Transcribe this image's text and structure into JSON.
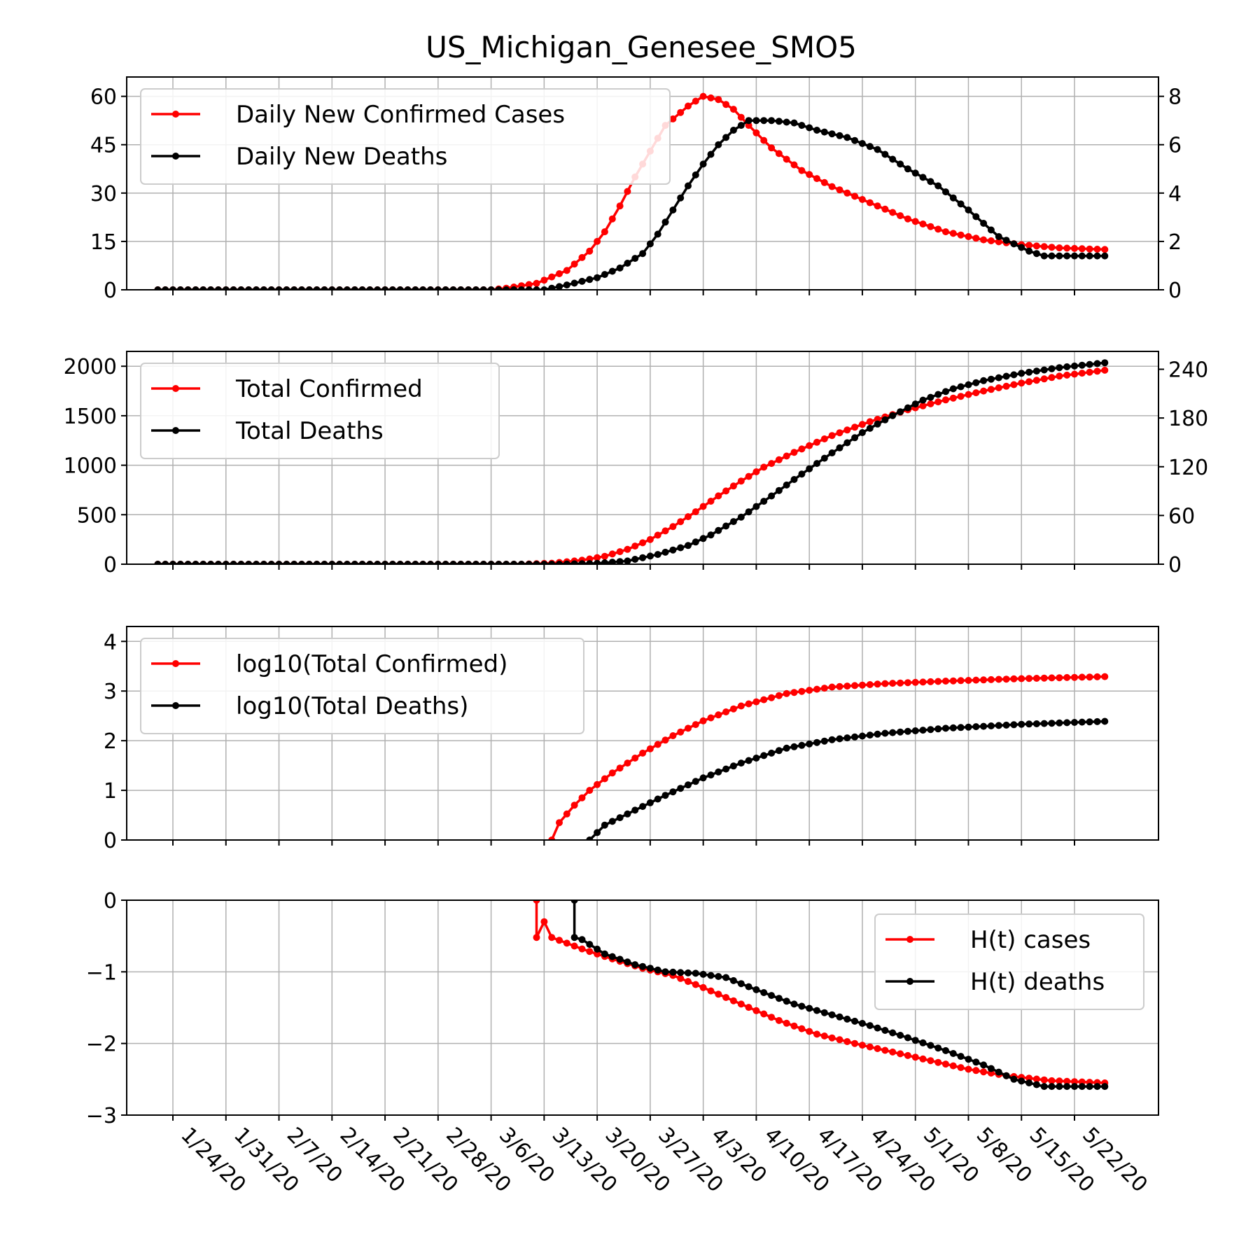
{
  "title": "US_Michigan_Genesee_SMO5",
  "x_tick_labels": [
    "1/24/20",
    "1/31/20",
    "2/7/20",
    "2/14/20",
    "2/21/20",
    "2/28/20",
    "3/6/20",
    "3/13/20",
    "3/20/20",
    "3/27/20",
    "4/3/20",
    "4/10/20",
    "4/17/20",
    "4/24/20",
    "5/1/20",
    "5/8/20",
    "5/15/20",
    "5/22/20"
  ],
  "colors": {
    "cases": "#ff0000",
    "deaths": "#000000",
    "grid": "#b0b0b0"
  },
  "chart_data": [
    {
      "type": "line",
      "panel": "daily",
      "x_start": "2020-01-22",
      "x_end": "2020-05-26",
      "x_ticks": [
        "1/24/20",
        "1/31/20",
        "2/7/20",
        "2/14/20",
        "2/21/20",
        "2/28/20",
        "3/6/20",
        "3/13/20",
        "3/20/20",
        "3/27/20",
        "4/3/20",
        "4/10/20",
        "4/17/20",
        "4/24/20",
        "5/1/20",
        "5/8/20",
        "5/15/20",
        "5/22/20"
      ],
      "ylim_left": [
        0,
        66
      ],
      "yticks_left": [
        "0",
        "15",
        "30",
        "45",
        "60"
      ],
      "ylim_right": [
        0,
        8.8
      ],
      "yticks_right": [
        "0",
        "2",
        "4",
        "6",
        "8"
      ],
      "grid": true,
      "legend_position": "upper-left",
      "series": [
        {
          "name": "Daily New Confirmed Cases",
          "axis": "left",
          "color": "#ff0000",
          "points": [
            [
              "2020-01-22",
              0
            ],
            [
              "2020-03-06",
              0
            ],
            [
              "2020-03-08",
              0.5
            ],
            [
              "2020-03-12",
              2
            ],
            [
              "2020-03-16",
              6
            ],
            [
              "2020-03-19",
              12
            ],
            [
              "2020-03-21",
              18
            ],
            [
              "2020-03-23",
              26
            ],
            [
              "2020-03-25",
              35
            ],
            [
              "2020-03-27",
              43
            ],
            [
              "2020-03-29",
              51
            ],
            [
              "2020-04-01",
              57
            ],
            [
              "2020-04-03",
              60
            ],
            [
              "2020-04-05",
              59
            ],
            [
              "2020-04-07",
              56
            ],
            [
              "2020-04-09",
              51
            ],
            [
              "2020-04-12",
              44
            ],
            [
              "2020-04-16",
              37
            ],
            [
              "2020-04-20",
              32
            ],
            [
              "2020-04-25",
              27
            ],
            [
              "2020-04-30",
              22
            ],
            [
              "2020-05-05",
              18
            ],
            [
              "2020-05-10",
              15.5
            ],
            [
              "2020-05-15",
              14
            ],
            [
              "2020-05-20",
              13
            ],
            [
              "2020-05-26",
              12.5
            ]
          ]
        },
        {
          "name": "Daily New Deaths",
          "axis": "right",
          "color": "#000000",
          "points": [
            [
              "2020-01-22",
              0
            ],
            [
              "2020-03-13",
              0
            ],
            [
              "2020-03-16",
              0.2
            ],
            [
              "2020-03-20",
              0.5
            ],
            [
              "2020-03-23",
              0.9
            ],
            [
              "2020-03-26",
              1.5
            ],
            [
              "2020-03-28",
              2.3
            ],
            [
              "2020-03-30",
              3.3
            ],
            [
              "2020-04-01",
              4.3
            ],
            [
              "2020-04-03",
              5.2
            ],
            [
              "2020-04-05",
              6.0
            ],
            [
              "2020-04-07",
              6.6
            ],
            [
              "2020-04-09",
              7.0
            ],
            [
              "2020-04-12",
              7.0
            ],
            [
              "2020-04-15",
              6.9
            ],
            [
              "2020-04-18",
              6.6
            ],
            [
              "2020-04-22",
              6.3
            ],
            [
              "2020-04-26",
              5.8
            ],
            [
              "2020-04-30",
              5.0
            ],
            [
              "2020-05-04",
              4.3
            ],
            [
              "2020-05-08",
              3.3
            ],
            [
              "2020-05-12",
              2.2
            ],
            [
              "2020-05-16",
              1.6
            ],
            [
              "2020-05-18",
              1.4
            ],
            [
              "2020-05-26",
              1.4
            ]
          ]
        }
      ]
    },
    {
      "type": "line",
      "panel": "total",
      "ylim_left": [
        0,
        2150
      ],
      "yticks_left": [
        "0",
        "500",
        "1000",
        "1500",
        "2000"
      ],
      "ylim_right": [
        0,
        262
      ],
      "yticks_right": [
        "0",
        "60",
        "120",
        "180",
        "240"
      ],
      "grid": true,
      "legend_position": "upper-left",
      "series": [
        {
          "name": "Total Confirmed",
          "axis": "left",
          "color": "#ff0000",
          "points": [
            [
              "2020-01-22",
              0
            ],
            [
              "2020-03-10",
              0
            ],
            [
              "2020-03-14",
              10
            ],
            [
              "2020-03-18",
              40
            ],
            [
              "2020-03-21",
              80
            ],
            [
              "2020-03-24",
              150
            ],
            [
              "2020-03-27",
              250
            ],
            [
              "2020-03-30",
              380
            ],
            [
              "2020-04-02",
              530
            ],
            [
              "2020-04-05",
              690
            ],
            [
              "2020-04-08",
              840
            ],
            [
              "2020-04-11",
              980
            ],
            [
              "2020-04-15",
              1130
            ],
            [
              "2020-04-20",
              1300
            ],
            [
              "2020-04-25",
              1440
            ],
            [
              "2020-04-30",
              1560
            ],
            [
              "2020-05-05",
              1660
            ],
            [
              "2020-05-10",
              1750
            ],
            [
              "2020-05-15",
              1830
            ],
            [
              "2020-05-20",
              1900
            ],
            [
              "2020-05-26",
              1960
            ]
          ]
        },
        {
          "name": "Total Deaths",
          "axis": "right",
          "color": "#000000",
          "points": [
            [
              "2020-01-22",
              0
            ],
            [
              "2020-03-15",
              0
            ],
            [
              "2020-03-20",
              1
            ],
            [
              "2020-03-24",
              4
            ],
            [
              "2020-03-28",
              12
            ],
            [
              "2020-04-01",
              23
            ],
            [
              "2020-04-04",
              36
            ],
            [
              "2020-04-08",
              58
            ],
            [
              "2020-04-12",
              84
            ],
            [
              "2020-04-16",
              111
            ],
            [
              "2020-04-20",
              137
            ],
            [
              "2020-04-24",
              162
            ],
            [
              "2020-04-28",
              183
            ],
            [
              "2020-05-02",
              202
            ],
            [
              "2020-05-06",
              216
            ],
            [
              "2020-05-10",
              226
            ],
            [
              "2020-05-15",
              235
            ],
            [
              "2020-05-20",
              242
            ],
            [
              "2020-05-26",
              248
            ]
          ]
        }
      ]
    },
    {
      "type": "line",
      "panel": "log",
      "ylim_left": [
        0,
        4.3
      ],
      "yticks_left": [
        "0",
        "1",
        "2",
        "3",
        "4"
      ],
      "grid": true,
      "legend_position": "upper-left",
      "series": [
        {
          "name": "log10(Total Confirmed)",
          "axis": "left",
          "color": "#ff0000",
          "points": [
            [
              "2020-03-14",
              0
            ],
            [
              "2020-03-15",
              0.35
            ],
            [
              "2020-03-17",
              0.7
            ],
            [
              "2020-03-19",
              1.0
            ],
            [
              "2020-03-22",
              1.35
            ],
            [
              "2020-03-26",
              1.75
            ],
            [
              "2020-03-30",
              2.1
            ],
            [
              "2020-04-03",
              2.4
            ],
            [
              "2020-04-08",
              2.7
            ],
            [
              "2020-04-14",
              2.95
            ],
            [
              "2020-04-20",
              3.08
            ],
            [
              "2020-04-27",
              3.15
            ],
            [
              "2020-05-05",
              3.2
            ],
            [
              "2020-05-15",
              3.25
            ],
            [
              "2020-05-26",
              3.29
            ]
          ]
        },
        {
          "name": "log10(Total Deaths)",
          "axis": "left",
          "color": "#000000",
          "points": [
            [
              "2020-03-19",
              0
            ],
            [
              "2020-03-21",
              0.3
            ],
            [
              "2020-03-25",
              0.6
            ],
            [
              "2020-03-29",
              0.9
            ],
            [
              "2020-04-03",
              1.25
            ],
            [
              "2020-04-08",
              1.55
            ],
            [
              "2020-04-14",
              1.85
            ],
            [
              "2020-04-20",
              2.02
            ],
            [
              "2020-04-27",
              2.15
            ],
            [
              "2020-05-05",
              2.25
            ],
            [
              "2020-05-15",
              2.33
            ],
            [
              "2020-05-26",
              2.39
            ]
          ]
        }
      ]
    },
    {
      "type": "line",
      "panel": "h",
      "ylim_left": [
        -3,
        0
      ],
      "yticks_left": [
        "0",
        "−1",
        "−2",
        "−3"
      ],
      "grid": true,
      "legend_position": "upper-right",
      "series": [
        {
          "name": "H(t) cases",
          "axis": "left",
          "color": "#ff0000",
          "points": [
            [
              "2020-03-12",
              0
            ],
            [
              "2020-03-12",
              -0.52
            ],
            [
              "2020-03-13",
              -0.3
            ],
            [
              "2020-03-14",
              -0.52
            ],
            [
              "2020-03-18",
              -0.68
            ],
            [
              "2020-03-22",
              -0.82
            ],
            [
              "2020-03-26",
              -0.95
            ],
            [
              "2020-03-30",
              -1.05
            ],
            [
              "2020-04-03",
              -1.22
            ],
            [
              "2020-04-08",
              -1.45
            ],
            [
              "2020-04-13",
              -1.68
            ],
            [
              "2020-04-18",
              -1.87
            ],
            [
              "2020-04-23",
              -2.0
            ],
            [
              "2020-04-28",
              -2.12
            ],
            [
              "2020-05-03",
              -2.24
            ],
            [
              "2020-05-08",
              -2.36
            ],
            [
              "2020-05-13",
              -2.45
            ],
            [
              "2020-05-19",
              -2.52
            ],
            [
              "2020-05-26",
              -2.55
            ]
          ]
        },
        {
          "name": "H(t) deaths",
          "axis": "left",
          "color": "#000000",
          "points": [
            [
              "2020-03-17",
              0
            ],
            [
              "2020-03-17",
              -0.52
            ],
            [
              "2020-03-18",
              -0.55
            ],
            [
              "2020-03-21",
              -0.75
            ],
            [
              "2020-03-25",
              -0.9
            ],
            [
              "2020-03-29",
              -1.0
            ],
            [
              "2020-04-02",
              -1.02
            ],
            [
              "2020-04-06",
              -1.08
            ],
            [
              "2020-04-10",
              -1.25
            ],
            [
              "2020-04-15",
              -1.45
            ],
            [
              "2020-04-20",
              -1.6
            ],
            [
              "2020-04-25",
              -1.75
            ],
            [
              "2020-04-30",
              -1.92
            ],
            [
              "2020-05-05",
              -2.1
            ],
            [
              "2020-05-10",
              -2.3
            ],
            [
              "2020-05-14",
              -2.5
            ],
            [
              "2020-05-18",
              -2.6
            ],
            [
              "2020-05-26",
              -2.6
            ]
          ]
        }
      ]
    }
  ]
}
